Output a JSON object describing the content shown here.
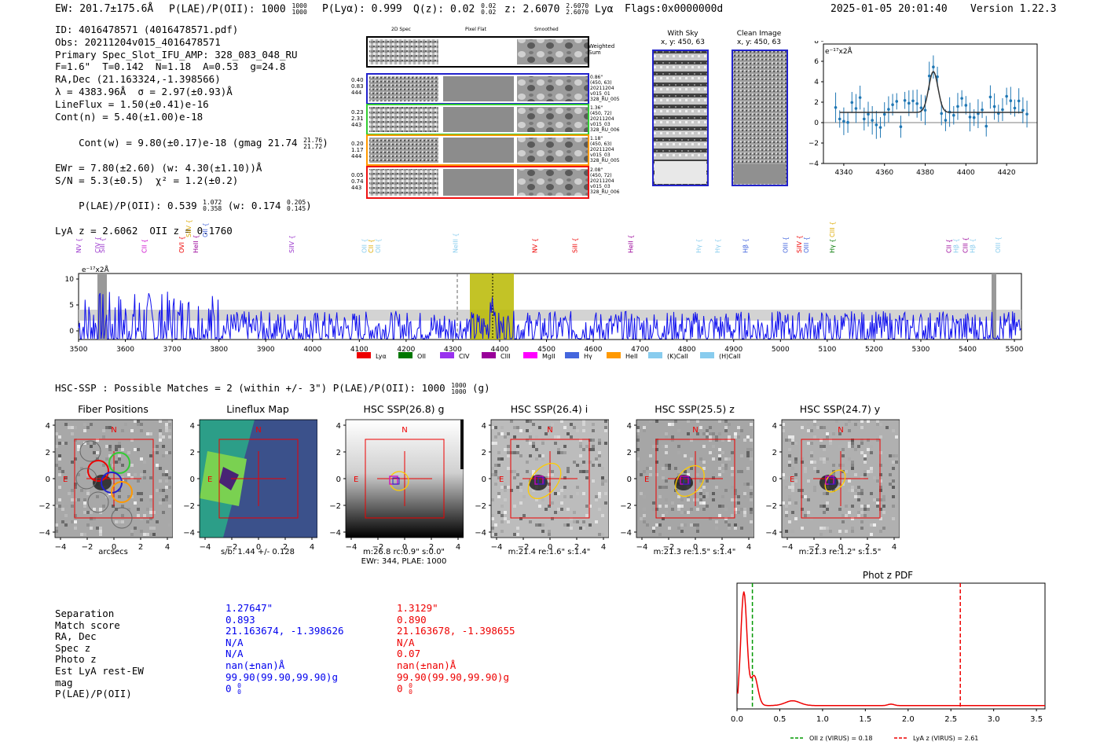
{
  "header": {
    "ew": "EW: 201.7±175.6Å",
    "plae_label": "P(LAE)/P(OII): 1000",
    "plae_hi": "1000",
    "plae_lo": "1000",
    "plya": "P(Lyα): 0.999",
    "qz_label": "Q(z): 0.02",
    "qz_hi": "0.02",
    "qz_lo": "0.02",
    "z_label": "z: 2.6070",
    "z_hi": "2.6070",
    "z_lo": "2.6070",
    "z_line": "Lyα",
    "flags": "Flags:0x0000000d",
    "datetime": "2025-01-05 20:01:40",
    "version": "Version 1.22.3"
  },
  "info": {
    "lines": [
      "ID: 4016478571 (4016478571.pdf)",
      "Obs: 20211204v015_4016478571",
      "Primary Spec_Slot_IFU_AMP: 328_083_048_RU",
      "F=1.6\"  T=0.142  N=1.18  A=0.53  g=24.8",
      "RA,Dec (21.163324,-1.398566)",
      "λ = 4383.96Å  σ = 2.97(±0.93)Å",
      "LineFlux = 1.50(±0.41)e-16",
      "Cont(n) = 5.40(±1.00)e-18"
    ],
    "contw": "Cont(w) = 9.80(±0.17)e-18 (gmag 21.74",
    "contw_hi": "21.76",
    "contw_lo": "21.72",
    "ewr": "EWr = 7.80(±2.60) (w: 4.30(±1.10))Å",
    "sn": "S/N = 5.3(±0.5)  χ² = 1.2(±0.2)",
    "plae": "P(LAE)/P(OII): 0.539",
    "plae_hi": "1.072",
    "plae_lo": "0.358",
    "plae_w": "(w: 0.174",
    "plae_w_hi": "0.205",
    "plae_w_lo": "0.145",
    "lyaz": "LyA z = 2.6062  OII z = 0.1760"
  },
  "cutouts": {
    "col_headers": [
      "2D Spec",
      "Pixel Flat",
      "Smoothed"
    ],
    "weighted_sum": "Weighted Sum",
    "rows": [
      {
        "left": [
          "0.40",
          "0.83",
          "444"
        ],
        "right": [
          "0.86\"",
          "(450, 63)",
          "20211204",
          "v015_01",
          "328_RU_005"
        ],
        "color": "#2222cc"
      },
      {
        "left": [
          "0.23",
          "2.31",
          "443"
        ],
        "right": [
          "1.36\"",
          "(450, 72)",
          "20211204",
          "v015_03",
          "328_RU_006"
        ],
        "color": "#33cc33"
      },
      {
        "left": [
          "0.20",
          "1.17",
          "444"
        ],
        "right": [
          "1.18\"",
          "(450, 63)",
          "20211204",
          "v015_03",
          "328_RU_005"
        ],
        "color": "#ff9900"
      },
      {
        "left": [
          "0.05",
          "0.74",
          "443"
        ],
        "right": [
          "2.08\"",
          "(450, 72)",
          "20211204",
          "v015_03",
          "328_RU_006"
        ],
        "color": "#ee1111"
      }
    ],
    "with_sky_title": "With Sky",
    "with_sky_xy": "x, y: 450, 63",
    "clean_title": "Clean Image",
    "clean_xy": "x, y: 450, 63"
  },
  "zoom_plot": {
    "unit": "e⁻¹⁷x2Å",
    "yticks": [
      "8",
      "6",
      "4",
      "2",
      "0",
      "−2",
      "−4"
    ],
    "xticks": [
      "4340",
      "4360",
      "4380",
      "4400",
      "4420"
    ]
  },
  "full_spectrum": {
    "unit": "e⁻¹⁷x2Å",
    "yticks": [
      "10",
      "5",
      "0"
    ],
    "xticks": [
      "3500",
      "3600",
      "3700",
      "3800",
      "3900",
      "4000",
      "4100",
      "4200",
      "4300",
      "4400",
      "4500",
      "4600",
      "4700",
      "4800",
      "4900",
      "5000",
      "5100",
      "5200",
      "5300",
      "5400",
      "5500"
    ],
    "line_labels": [
      {
        "t": "NV",
        "c": "#9933cc",
        "w": 3500
      },
      {
        "t": "CIV",
        "c": "#9933cc",
        "w": 3540
      },
      {
        "t": "SiII",
        "c": "#9933cc",
        "w": 3550
      },
      {
        "t": "CII",
        "c": "#cc00cc",
        "w": 3640
      },
      {
        "t": "OVI",
        "c": "#ee0000",
        "w": 3720
      },
      {
        "t": "HeII",
        "c": "#990099",
        "w": 3750
      },
      {
        "t": "SiIV",
        "c": "#9933cc",
        "w": 3955
      },
      {
        "t": "OII",
        "c": "#88ccee",
        "w": 4110
      },
      {
        "t": "CII",
        "c": "#ddaa00",
        "w": 4125
      },
      {
        "t": "OII",
        "c": "#88ccee",
        "w": 4140
      },
      {
        "t": "NeIII",
        "c": "#88ccee",
        "w": 4305
      },
      {
        "t": "NV",
        "c": "#ee0000",
        "w": 4475
      },
      {
        "t": "SiII",
        "c": "#ee0000",
        "w": 4560
      },
      {
        "t": "HeII",
        "c": "#990099",
        "w": 4680
      },
      {
        "t": "Hγ",
        "c": "#88ccee",
        "w": 4825
      },
      {
        "t": "Hγ",
        "c": "#88ccee",
        "w": 4865
      },
      {
        "t": "Hβ",
        "c": "#4466dd",
        "w": 4925
      },
      {
        "t": "OIII",
        "c": "#4466dd",
        "w": 5010
      },
      {
        "t": "SiIV",
        "c": "#ee0000",
        "w": 5040
      },
      {
        "t": "OIII",
        "c": "#4466dd",
        "w": 5055
      },
      {
        "t": "Hγ",
        "c": "#007700",
        "w": 5110
      },
      {
        "t": "CII",
        "c": "#990099",
        "w": 5360
      },
      {
        "t": "Hβ",
        "c": "#88ccee",
        "w": 5375
      },
      {
        "t": "CIII",
        "c": "#990099",
        "w": 5395
      },
      {
        "t": "Hβ",
        "c": "#88ccee",
        "w": 5410
      },
      {
        "t": "OIII",
        "c": "#88ccee",
        "w": 5465
      }
    ],
    "upper_labels": [
      {
        "t": "SiIV",
        "c": "#ddaa00",
        "w": 3735
      },
      {
        "t": "OII",
        "c": "#4466dd",
        "w": 3770
      },
      {
        "t": "CIII",
        "c": "#ddaa00",
        "w": 5110
      }
    ],
    "legend": [
      {
        "t": "Lyα",
        "c": "#ee0000"
      },
      {
        "t": "OII",
        "c": "#007700"
      },
      {
        "t": "CIV",
        "c": "#9933ee"
      },
      {
        "t": "CIII",
        "c": "#990099"
      },
      {
        "t": "MgII",
        "c": "#ff00ff"
      },
      {
        "t": "Hγ",
        "c": "#4466dd"
      },
      {
        "t": "HeII",
        "c": "#ff9900"
      },
      {
        "t": "(K)CaII",
        "c": "#88ccee"
      },
      {
        "t": "(H)CaII",
        "c": "#88ccee"
      }
    ]
  },
  "hsc": {
    "heading": "HSC-SSP : Possible Matches = 2 (within +/- 3\")  P(LAE)/P(OII): 1000",
    "heading_hi": "1000",
    "heading_lo": "1000",
    "heading_suffix": "(g)",
    "panels": [
      {
        "title": "Fiber Positions",
        "caption1": "arcsecs",
        "caption2": ""
      },
      {
        "title": "Lineflux Map",
        "caption1": "s/b: 1.44 +/- 0.128",
        "caption2": ""
      },
      {
        "title": "HSC SSP(26.8) g",
        "caption1": "m:26.8 rc:0.9\"  s:0.0\"",
        "caption2": "EWr: 344, PLAE: 1000"
      },
      {
        "title": "HSC SSP(26.4) i",
        "caption1": "m:21.4  re:1.6\"  s:1.4\"",
        "caption2": ""
      },
      {
        "title": "HSC SSP(25.5) z",
        "caption1": "m:21.3  re:1.5\"  s:1.4\"",
        "caption2": ""
      },
      {
        "title": "HSC SSP(24.7) y",
        "caption1": "m:21.3  re:1.2\"  s:1.5\"",
        "caption2": ""
      }
    ],
    "axis_ticks": [
      "4",
      "2",
      "0",
      "−2",
      "−4"
    ],
    "x_ticks": [
      "−4",
      "−2",
      "0",
      "2",
      "4"
    ],
    "compass_n": "N",
    "compass_e": "E"
  },
  "matches": {
    "labels": [
      "Separation",
      "Match score",
      "RA, Dec",
      "Spec z",
      "Photo z",
      "Est LyA rest-EW",
      "mag",
      "P(LAE)/P(OII)"
    ],
    "blue": [
      "1.27647\"",
      "0.893",
      "21.163674, -1.398626",
      "N/A",
      "N/A",
      "nan(±nan)Å",
      "99.90(99.90,99.90)g",
      "0"
    ],
    "red": [
      "1.3129\"",
      "0.890",
      "21.163678, -1.398655",
      "N/A",
      "0.07",
      "nan(±nan)Å",
      "99.90(99.90,99.90)g",
      "0"
    ],
    "blue_frac": [
      "0",
      "0"
    ],
    "red_frac": [
      "0",
      "0"
    ]
  },
  "photz": {
    "title": "Phot z PDF",
    "xticks": [
      "0.0",
      "0.5",
      "1.0",
      "1.5",
      "2.0",
      "2.5",
      "3.0",
      "3.5"
    ],
    "legend_oii": "OII z (VIRUS) = 0.18",
    "legend_lya": "LyA z (VIRUS) = 2.61",
    "oii_z": 0.18,
    "lya_z": 2.61
  }
}
